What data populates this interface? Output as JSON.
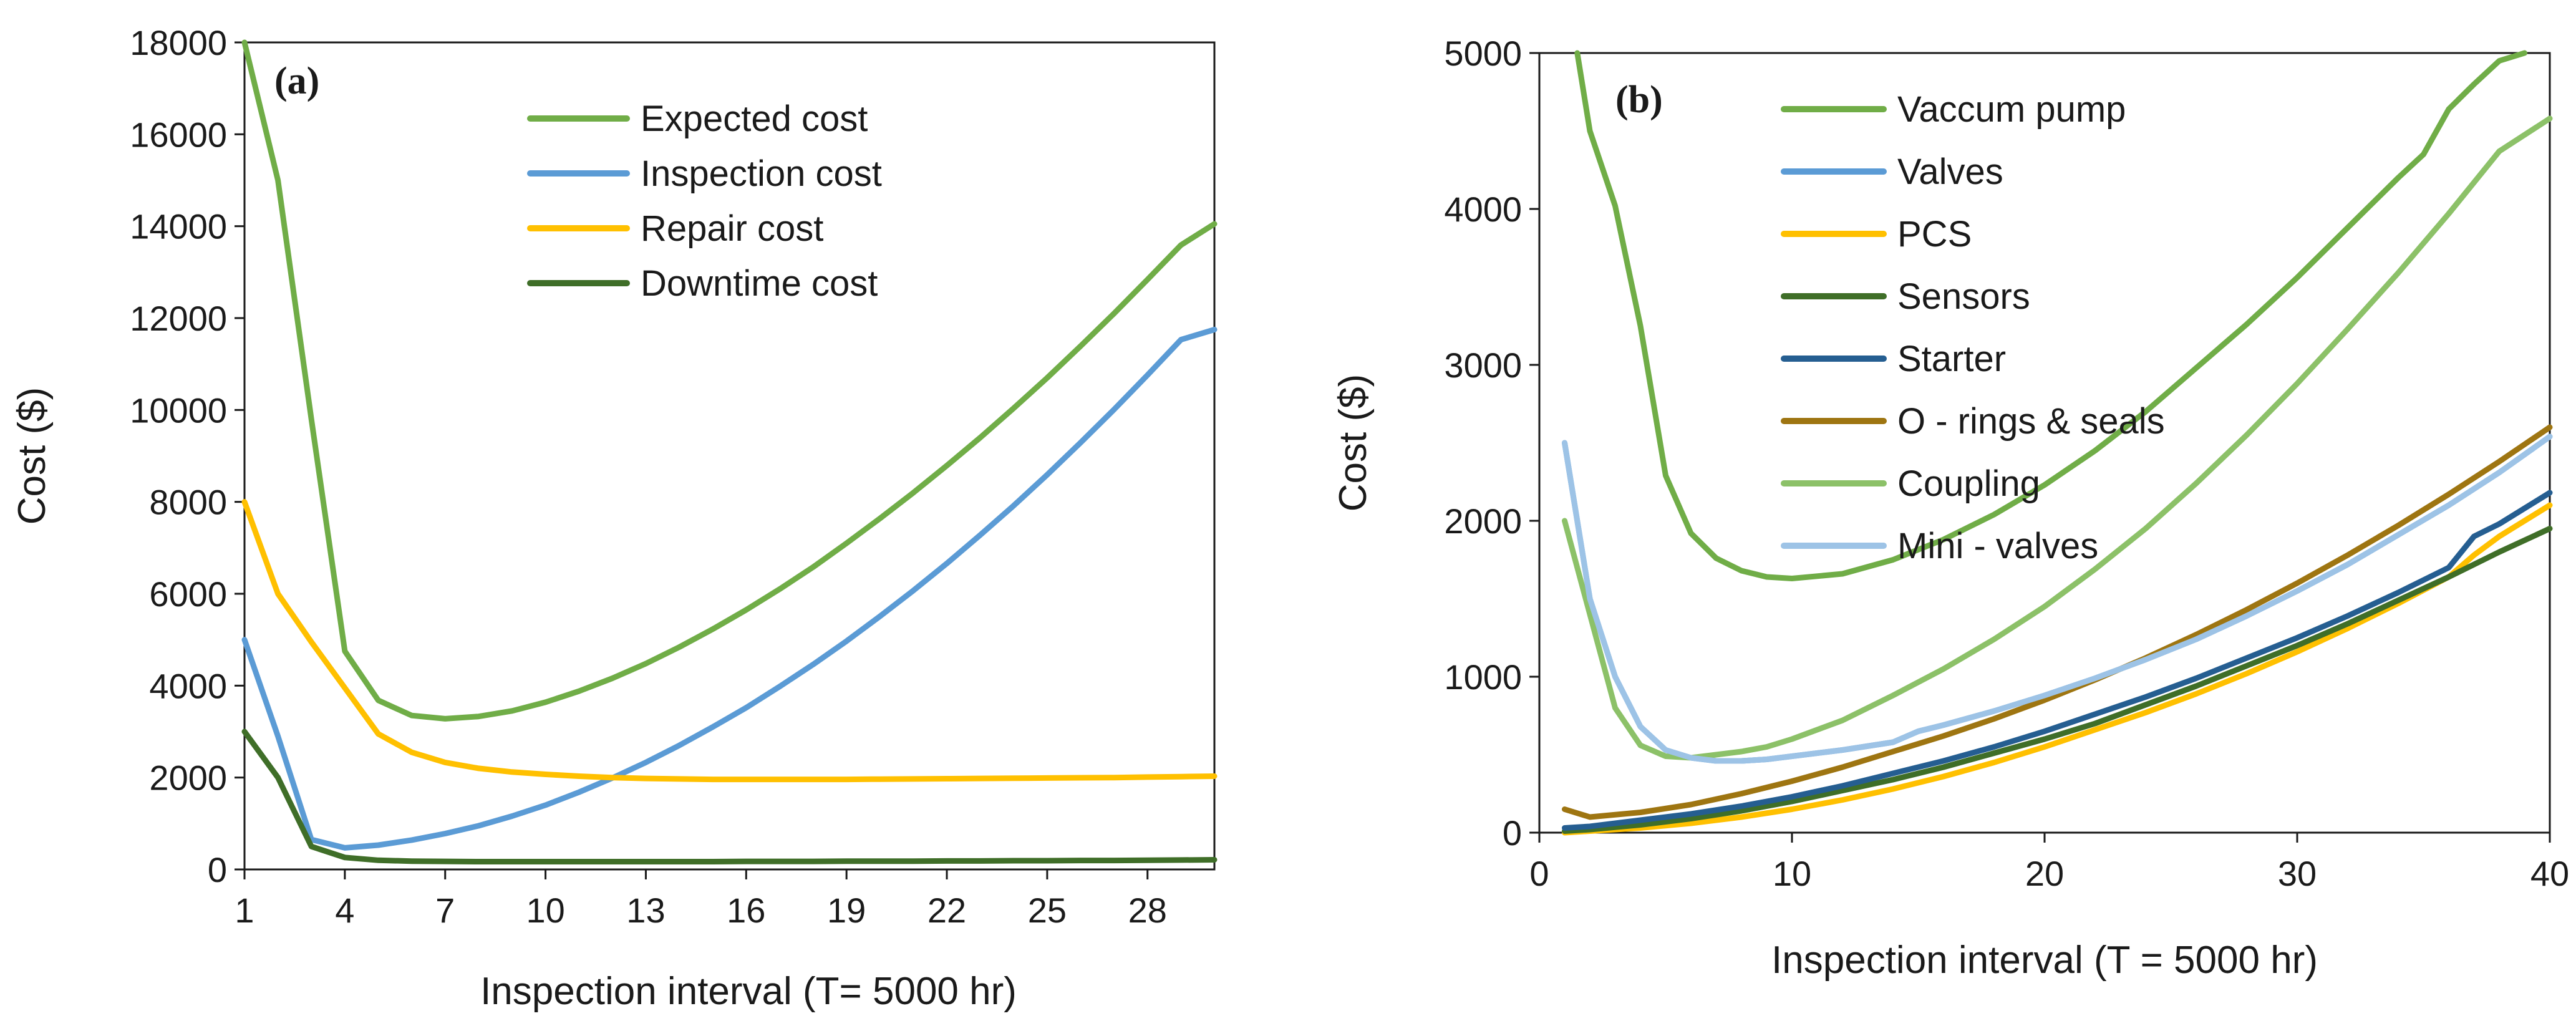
{
  "chart_data": [
    {
      "type": "line",
      "panel_label": "(a)",
      "title": "",
      "xlabel": "Inspection interval (T= 5000 hr)",
      "ylabel": "Cost ($)",
      "xlim": [
        1,
        30
      ],
      "ylim": [
        0,
        18000
      ],
      "x_ticks": [
        1,
        4,
        7,
        10,
        13,
        16,
        19,
        22,
        25,
        28
      ],
      "y_ticks": [
        0,
        2000,
        4000,
        6000,
        8000,
        10000,
        12000,
        14000,
        16000,
        18000
      ],
      "grid": false,
      "legend_position": "top-right",
      "series": [
        {
          "name": "Expected cost",
          "color": "#70ad47",
          "x": [
            1,
            2,
            3,
            4,
            5,
            6,
            7,
            8,
            9,
            10,
            11,
            12,
            13,
            14,
            15,
            16,
            17,
            18,
            19,
            20,
            21,
            22,
            23,
            24,
            25,
            26,
            27,
            28,
            29,
            30
          ],
          "values": [
            18000,
            15000,
            9800,
            4750,
            3680,
            3350,
            3280,
            3330,
            3450,
            3640,
            3880,
            4160,
            4480,
            4840,
            5230,
            5650,
            6100,
            6580,
            7100,
            7640,
            8200,
            8790,
            9400,
            10040,
            10700,
            11390,
            12100,
            12840,
            13590,
            14050
          ]
        },
        {
          "name": "Inspection cost",
          "color": "#5b9bd5",
          "x": [
            1,
            2,
            3,
            4,
            5,
            6,
            7,
            8,
            9,
            10,
            11,
            12,
            13,
            14,
            15,
            16,
            17,
            18,
            19,
            20,
            21,
            22,
            23,
            24,
            25,
            26,
            27,
            28,
            29,
            30
          ],
          "values": [
            5000,
            2900,
            650,
            470,
            530,
            640,
            780,
            950,
            1160,
            1400,
            1680,
            1990,
            2330,
            2700,
            3100,
            3520,
            3980,
            4460,
            4970,
            5510,
            6070,
            6660,
            7280,
            7920,
            8590,
            9290,
            10010,
            10760,
            11530,
            11750
          ]
        },
        {
          "name": "Repair cost",
          "color": "#ffc000",
          "x": [
            1,
            2,
            3,
            4,
            5,
            6,
            7,
            8,
            9,
            10,
            11,
            12,
            13,
            14,
            15,
            16,
            17,
            18,
            19,
            20,
            21,
            22,
            23,
            24,
            25,
            26,
            27,
            28,
            29,
            30
          ],
          "values": [
            8000,
            6000,
            4950,
            3950,
            2950,
            2550,
            2330,
            2200,
            2120,
            2070,
            2030,
            2000,
            1980,
            1970,
            1960,
            1960,
            1960,
            1960,
            1960,
            1965,
            1970,
            1975,
            1980,
            1985,
            1990,
            1995,
            2000,
            2010,
            2020,
            2030
          ]
        },
        {
          "name": "Downtime cost",
          "color": "#3f6e28",
          "x": [
            1,
            2,
            3,
            4,
            5,
            6,
            7,
            8,
            9,
            10,
            11,
            12,
            13,
            14,
            15,
            16,
            17,
            18,
            19,
            20,
            21,
            22,
            23,
            24,
            25,
            26,
            27,
            28,
            29,
            30
          ],
          "values": [
            3000,
            2000,
            500,
            260,
            200,
            180,
            175,
            170,
            170,
            170,
            170,
            170,
            170,
            170,
            170,
            175,
            175,
            175,
            180,
            180,
            180,
            185,
            185,
            190,
            190,
            195,
            195,
            200,
            205,
            210
          ]
        }
      ]
    },
    {
      "type": "line",
      "panel_label": "(b)",
      "title": "",
      "xlabel": "Inspection interval (T = 5000 hr)",
      "ylabel": "Cost ($)",
      "xlim": [
        0,
        40
      ],
      "ylim": [
        0,
        5000
      ],
      "x_ticks": [
        0,
        10,
        20,
        30,
        40
      ],
      "y_ticks": [
        0,
        1000,
        2000,
        3000,
        4000,
        5000
      ],
      "grid": false,
      "legend_position": "top-left",
      "series": [
        {
          "name": "Vaccum pump",
          "color": "#70ad47",
          "x": [
            1.5,
            2,
            3,
            4,
            5,
            6,
            7,
            8,
            9,
            10,
            12,
            14,
            16,
            18,
            20,
            22,
            24,
            26,
            28,
            30,
            32,
            34,
            35,
            36,
            37,
            38,
            39
          ],
          "values": [
            5000,
            4500,
            4020,
            3250,
            2290,
            1920,
            1760,
            1680,
            1640,
            1630,
            1660,
            1750,
            1880,
            2040,
            2230,
            2450,
            2700,
            2980,
            3260,
            3560,
            3880,
            4200,
            4350,
            4640,
            4800,
            4950,
            5000
          ]
        },
        {
          "name": "Valves",
          "color": "#5b9bd5",
          "x": [
            1,
            2,
            3,
            4,
            5,
            6,
            7,
            8,
            9,
            10,
            12,
            14,
            15,
            16,
            18,
            20,
            22,
            24,
            26,
            28,
            30,
            32,
            34,
            36,
            38,
            40
          ],
          "values": [
            2500,
            1500,
            1000,
            680,
            530,
            480,
            460,
            460,
            470,
            490,
            530,
            580,
            650,
            690,
            780,
            880,
            990,
            1110,
            1240,
            1390,
            1550,
            1720,
            1910,
            2100,
            2310,
            2540
          ]
        },
        {
          "name": "PCS",
          "color": "#ffc000",
          "x": [
            1,
            2,
            4,
            6,
            8,
            10,
            12,
            14,
            16,
            18,
            20,
            22,
            24,
            26,
            28,
            30,
            32,
            34,
            36,
            37,
            38,
            40
          ],
          "values": [
            0,
            10,
            30,
            60,
            100,
            150,
            210,
            280,
            360,
            450,
            550,
            660,
            770,
            890,
            1020,
            1160,
            1310,
            1470,
            1640,
            1780,
            1900,
            2100
          ]
        },
        {
          "name": "Sensors",
          "color": "#3f6e28",
          "x": [
            1,
            2,
            4,
            6,
            8,
            10,
            12,
            14,
            16,
            18,
            20,
            22,
            24,
            26,
            28,
            30,
            32,
            34,
            36,
            38,
            40
          ],
          "values": [
            10,
            20,
            50,
            90,
            140,
            200,
            270,
            340,
            420,
            510,
            600,
            700,
            820,
            940,
            1070,
            1200,
            1340,
            1490,
            1640,
            1800,
            1950
          ]
        },
        {
          "name": "Starter",
          "color": "#255e91",
          "x": [
            1,
            2,
            4,
            6,
            8,
            10,
            12,
            14,
            16,
            18,
            20,
            22,
            24,
            26,
            28,
            30,
            32,
            34,
            36,
            37,
            38,
            40
          ],
          "values": [
            30,
            40,
            80,
            120,
            170,
            230,
            300,
            380,
            460,
            550,
            650,
            760,
            870,
            990,
            1120,
            1250,
            1390,
            1540,
            1700,
            1900,
            1980,
            2180
          ]
        },
        {
          "name": "O - rings & seals",
          "color": "#9e7511",
          "x": [
            1,
            2,
            4,
            6,
            8,
            10,
            12,
            14,
            16,
            18,
            20,
            22,
            24,
            26,
            28,
            30,
            32,
            34,
            36,
            38,
            40
          ],
          "values": [
            150,
            100,
            130,
            180,
            250,
            330,
            420,
            520,
            620,
            730,
            850,
            980,
            1120,
            1270,
            1430,
            1600,
            1780,
            1970,
            2170,
            2380,
            2600
          ]
        },
        {
          "name": "Coupling",
          "color": "#8cc168",
          "x": [
            1,
            2,
            3,
            4,
            5,
            6,
            7,
            8,
            9,
            10,
            12,
            14,
            16,
            18,
            20,
            22,
            24,
            26,
            28,
            30,
            32,
            34,
            36,
            38,
            40
          ],
          "values": [
            2000,
            1400,
            800,
            560,
            490,
            480,
            500,
            520,
            550,
            600,
            720,
            880,
            1050,
            1240,
            1450,
            1690,
            1950,
            2240,
            2550,
            2880,
            3230,
            3590,
            3970,
            4370,
            4580
          ]
        },
        {
          "name": "Mini - valves",
          "color": "#9dc3e6",
          "x": [
            1,
            2,
            3,
            4,
            5,
            6,
            7,
            8,
            9,
            10,
            12,
            14,
            15,
            16,
            18,
            20,
            22,
            24,
            26,
            28,
            30,
            32,
            34,
            36,
            38,
            40
          ],
          "values": [
            2500,
            1500,
            1000,
            680,
            530,
            480,
            460,
            460,
            470,
            490,
            530,
            580,
            650,
            690,
            780,
            880,
            990,
            1110,
            1240,
            1390,
            1550,
            1720,
            1910,
            2100,
            2310,
            2540
          ]
        }
      ]
    }
  ]
}
